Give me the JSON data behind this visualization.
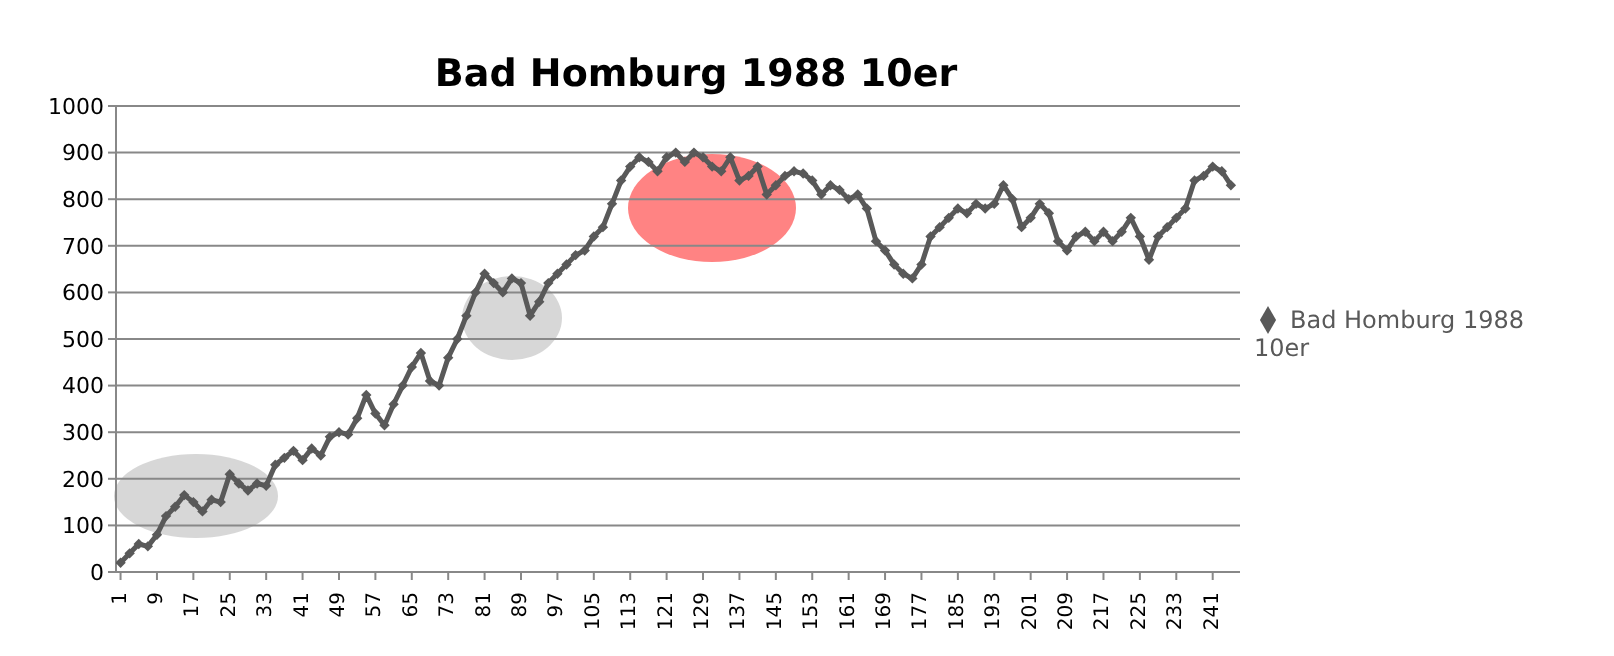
{
  "chart_data": {
    "type": "line",
    "title": "Bad Homburg 1988 10er",
    "x": [
      1,
      3,
      5,
      7,
      9,
      11,
      13,
      15,
      17,
      19,
      21,
      23,
      25,
      27,
      29,
      31,
      33,
      35,
      37,
      39,
      41,
      43,
      45,
      47,
      49,
      51,
      53,
      55,
      57,
      59,
      61,
      63,
      65,
      67,
      69,
      71,
      73,
      75,
      77,
      79,
      81,
      83,
      85,
      87,
      89,
      91,
      93,
      95,
      97,
      99,
      101,
      103,
      105,
      107,
      109,
      111,
      113,
      115,
      117,
      119,
      121,
      123,
      125,
      127,
      129,
      131,
      133,
      135,
      137,
      139,
      141,
      143,
      145,
      147,
      149,
      151,
      153,
      155,
      157,
      159,
      161,
      163,
      165,
      167,
      169,
      171,
      173,
      175,
      177,
      179,
      181,
      183,
      185,
      187,
      189,
      191,
      193,
      195,
      197,
      199,
      201,
      203,
      205,
      207,
      209,
      211,
      213,
      215,
      217,
      219,
      221,
      223,
      225,
      227,
      229,
      231,
      233,
      235,
      237,
      239,
      241,
      243,
      245
    ],
    "series": [
      {
        "name": "Bad Homburg 1988 10er",
        "color": "#595959",
        "values": [
          20,
          40,
          60,
          55,
          80,
          120,
          140,
          165,
          150,
          130,
          155,
          150,
          210,
          190,
          175,
          190,
          185,
          230,
          245,
          260,
          240,
          265,
          250,
          290,
          300,
          295,
          330,
          380,
          340,
          315,
          360,
          400,
          440,
          470,
          410,
          400,
          460,
          500,
          550,
          600,
          640,
          620,
          600,
          630,
          620,
          550,
          580,
          620,
          640,
          660,
          680,
          690,
          720,
          740,
          790,
          840,
          870,
          890,
          880,
          860,
          890,
          900,
          880,
          900,
          890,
          870,
          860,
          890,
          840,
          850,
          870,
          810,
          830,
          850,
          860,
          855,
          840,
          810,
          830,
          820,
          800,
          810,
          780,
          710,
          690,
          660,
          640,
          630,
          660,
          720,
          740,
          760,
          780,
          770,
          790,
          780,
          790,
          830,
          800,
          740,
          760,
          790,
          770,
          710,
          690,
          720,
          730,
          710,
          730,
          710,
          730,
          760,
          720,
          670,
          720,
          740,
          760,
          780,
          840,
          850,
          870,
          860,
          830
        ]
      }
    ],
    "xlim": [
      0,
      247
    ],
    "xticks": [
      1,
      9,
      17,
      25,
      33,
      41,
      49,
      57,
      65,
      73,
      81,
      89,
      97,
      105,
      113,
      121,
      129,
      137,
      145,
      153,
      161,
      169,
      177,
      185,
      193,
      201,
      209,
      217,
      225,
      233,
      241
    ],
    "ylim": [
      0,
      1000
    ],
    "yticks": [
      0,
      100,
      200,
      300,
      400,
      500,
      600,
      700,
      800,
      900,
      1000
    ],
    "grid": "y",
    "legend": "right",
    "marker": "diamond",
    "line_style": "solid"
  }
}
